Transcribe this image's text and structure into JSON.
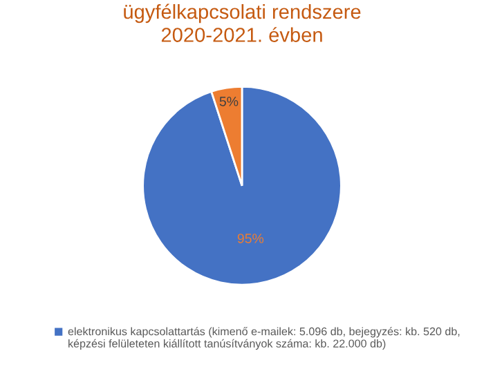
{
  "chart_data": {
    "type": "pie",
    "title": "ügyfélkapcsolati rendszere\n2020-2021. évben",
    "categories": [
      "elektronikus kapcsolattartás (kimenő e-mailek: 5.096 db, bejegyzés: kb. 520 db, képzési felületeten kiállított tanúsítványok száma: kb. 22.000 db)",
      null
    ],
    "values": [
      95,
      5
    ],
    "colors": [
      "#4472c4",
      "#ed7d31"
    ],
    "value_labels": [
      "95%",
      "5%"
    ],
    "legend": "bottom"
  }
}
